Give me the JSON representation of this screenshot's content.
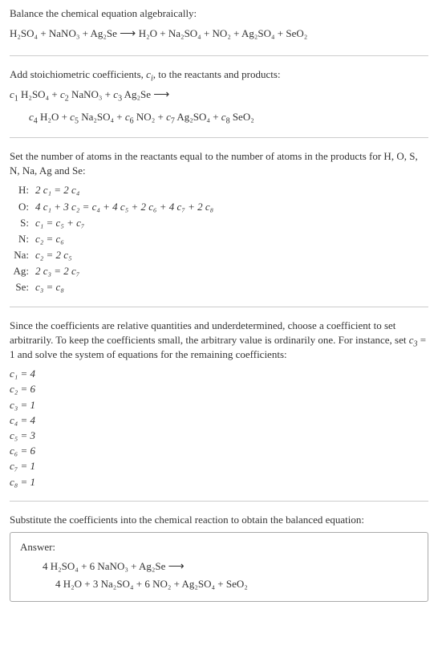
{
  "intro": {
    "line1": "Balance the chemical equation algebraically:",
    "reactants": "H₂SO₄ + NaNO₃ + Ag₂Se",
    "products": "H₂O + Na₂SO₄ + NO₂ + Ag₂SO₄ + SeO₂"
  },
  "stoich": {
    "text_p1": "Add stoichiometric coefficients, ",
    "ci": "c",
    "ci_sub": "i",
    "text_p2": ", to the reactants and products:",
    "eq_line1_c1": "c",
    "eq_line1_c1s": "1",
    "eq_line1_t1": " H₂SO₄ + ",
    "eq_line1_c2": "c",
    "eq_line1_c2s": "2",
    "eq_line1_t2": " NaNO₃ + ",
    "eq_line1_c3": "c",
    "eq_line1_c3s": "3",
    "eq_line1_t3": " Ag₂Se ",
    "eq_line2_c4": "c",
    "eq_line2_c4s": "4",
    "eq_line2_t4": " H₂O + ",
    "eq_line2_c5": "c",
    "eq_line2_c5s": "5",
    "eq_line2_t5": " Na₂SO₄ + ",
    "eq_line2_c6": "c",
    "eq_line2_c6s": "6",
    "eq_line2_t6": " NO₂ + ",
    "eq_line2_c7": "c",
    "eq_line2_c7s": "7",
    "eq_line2_t7": " Ag₂SO₄ + ",
    "eq_line2_c8": "c",
    "eq_line2_c8s": "8",
    "eq_line2_t8": " SeO₂"
  },
  "atoms": {
    "intro": "Set the number of atoms in the reactants equal to the number of atoms in the products for H, O, S, N, Na, Ag and Se:",
    "rows": [
      {
        "label": "H:",
        "eq": "2 c₁ = 2 c₄"
      },
      {
        "label": "O:",
        "eq": "4 c₁ + 3 c₂ = c₄ + 4 c₅ + 2 c₆ + 4 c₇ + 2 c₈"
      },
      {
        "label": "S:",
        "eq": "c₁ = c₅ + c₇"
      },
      {
        "label": "N:",
        "eq": "c₂ = c₆"
      },
      {
        "label": "Na:",
        "eq": "c₂ = 2 c₅"
      },
      {
        "label": "Ag:",
        "eq": "2 c₃ = 2 c₇"
      },
      {
        "label": "Se:",
        "eq": "c₃ = c₈"
      }
    ]
  },
  "solve": {
    "text_p1": "Since the coefficients are relative quantities and underdetermined, choose a coefficient to set arbitrarily. To keep the coefficients small, the arbitrary value is ordinarily one. For instance, set ",
    "c3": "c",
    "c3_sub": "3",
    "text_p2": " = 1 and solve the system of equations for the remaining coefficients:",
    "coeffs": [
      "c₁ = 4",
      "c₂ = 6",
      "c₃ = 1",
      "c₄ = 4",
      "c₅ = 3",
      "c₆ = 6",
      "c₇ = 1",
      "c₈ = 1"
    ]
  },
  "final": {
    "text": "Substitute the coefficients into the chemical reaction to obtain the balanced equation:"
  },
  "answer": {
    "label": "Answer:",
    "line1": "4 H₂SO₄ + 6 NaNO₃ + Ag₂Se ",
    "line2": "4 H₂O + 3 Na₂SO₄ + 6 NO₂ + Ag₂SO₄ + SeO₂"
  },
  "arrow": "⟶"
}
